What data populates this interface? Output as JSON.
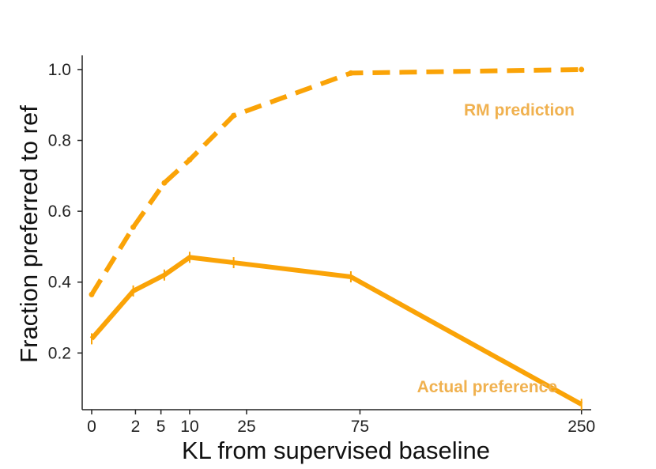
{
  "chart_data": {
    "type": "line",
    "xlabel": "KL from supervised baseline",
    "ylabel": "Fraction preferred to ref",
    "x_tick_labels": [
      "0",
      "2",
      "5",
      "10",
      "25",
      "75",
      "250"
    ],
    "y_tick_labels": [
      "0.2",
      "0.4",
      "0.6",
      "0.8",
      "1.0"
    ],
    "y_ticks": [
      0.2,
      0.4,
      0.6,
      0.8,
      1.0
    ],
    "x_scale": "sqrt",
    "xlim": [
      0,
      260
    ],
    "ylim": [
      0.04,
      1.04
    ],
    "series": [
      {
        "name": "RM prediction",
        "style": "dashed",
        "x": [
          0,
          1.8,
          5.5,
          10,
          21,
          70,
          250
        ],
        "y": [
          0.365,
          0.555,
          0.68,
          0.745,
          0.87,
          0.99,
          1.0
        ]
      },
      {
        "name": "Actual preference",
        "style": "solid",
        "x": [
          0,
          1.8,
          5.5,
          10,
          21,
          70,
          250
        ],
        "y": [
          0.24,
          0.375,
          0.42,
          0.47,
          0.455,
          0.415,
          0.055
        ]
      }
    ],
    "colors": {
      "line": "#FAA307",
      "label": "#F0B14F",
      "axis": "#222222"
    }
  }
}
